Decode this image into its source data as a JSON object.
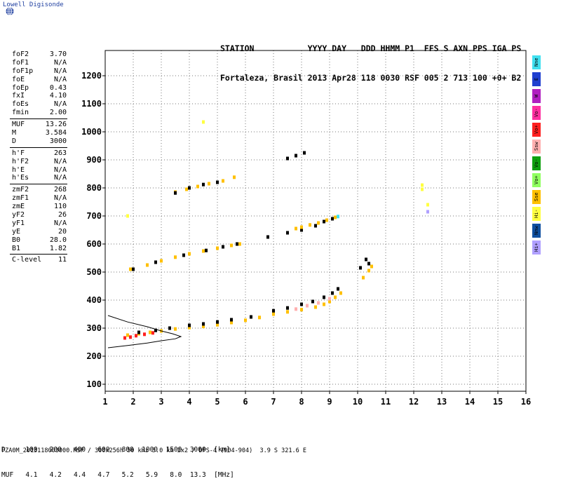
{
  "brand": "Lowell Digisonde",
  "header": {
    "line1": "STATION           YYYY DAY   DDD HHMM P1  FFS S AXN PPS IGA PS",
    "line2": "Fortaleza, Brasil 2013 Apr28 118 0030 RSF 005 2 713 100 +0+ B2"
  },
  "params": [
    {
      "label": "foF2",
      "value": "3.70"
    },
    {
      "label": "foF1",
      "value": "N/A"
    },
    {
      "label": "foF1p",
      "value": "N/A"
    },
    {
      "label": "foE",
      "value": "N/A"
    },
    {
      "label": "foEp",
      "value": "0.43"
    },
    {
      "label": "fxI",
      "value": "4.10"
    },
    {
      "label": "foEs",
      "value": "N/A"
    },
    {
      "label": "fmin",
      "value": "2.00"
    },
    {
      "sep": true
    },
    {
      "label": "MUF",
      "value": "13.26"
    },
    {
      "label": "M",
      "value": "3.584"
    },
    {
      "label": "D",
      "value": "3000"
    },
    {
      "sep": true
    },
    {
      "label": "h'F",
      "value": "263"
    },
    {
      "label": "h'F2",
      "value": "N/A"
    },
    {
      "label": "h'E",
      "value": "N/A"
    },
    {
      "label": "h'Es",
      "value": "N/A"
    },
    {
      "sep": true
    },
    {
      "label": "zmF2",
      "value": "268"
    },
    {
      "label": "zmF1",
      "value": "N/A"
    },
    {
      "label": "zmE",
      "value": "110"
    },
    {
      "label": "yF2",
      "value": "26"
    },
    {
      "label": "yF1",
      "value": "N/A"
    },
    {
      "label": "yE",
      "value": "20"
    },
    {
      "label": "B0",
      "value": "28.0"
    },
    {
      "label": "B1",
      "value": "1.82"
    },
    {
      "sep": true
    },
    {
      "label": "C-level",
      "value": "11"
    }
  ],
  "legend": [
    {
      "label": "Nne",
      "color": "#40e0f0"
    },
    {
      "label": "E",
      "color": "#2040d0"
    },
    {
      "label": "W",
      "color": "#b020c0"
    },
    {
      "label": "Vo-",
      "color": "#ff30a0"
    },
    {
      "label": "Vo+",
      "color": "#ff2020"
    },
    {
      "label": "Ssw",
      "color": "#ffb0b0"
    },
    {
      "label": "Vo-",
      "color": "#10a010"
    },
    {
      "label": "Vo+",
      "color": "#90ff60"
    },
    {
      "label": "Sse",
      "color": "#ffc000"
    },
    {
      "label": "Hi-",
      "color": "#ffff40"
    },
    {
      "label": "Nnw",
      "color": "#1050a0"
    },
    {
      "label": "Hi+",
      "color": "#b0a0ff"
    }
  ],
  "footer": {
    "line1": "D     100   200   400   600   800  1000  1500  3000  [km]",
    "line2": "MUF   4.1   4.2   4.4   4.7   5.2   5.9   8.0  13.3  [MHz]",
    "file": "FZA0M_2013118003000.RSF / 300x256h 50 kHz 5.0 km 2x2 / DPS-4 (904-904)  3.9 S 321.6 E"
  },
  "chart_data": {
    "type": "scatter",
    "xlim": [
      1,
      16
    ],
    "ylim": [
      75,
      1290
    ],
    "x_ticks": [
      1,
      2,
      3,
      4,
      5,
      6,
      7,
      8,
      9,
      10,
      11,
      12,
      13,
      14,
      15,
      16
    ],
    "y_ticks": [
      100,
      200,
      300,
      400,
      500,
      600,
      700,
      800,
      900,
      1000,
      1100,
      1200
    ],
    "grid": true,
    "traces": [
      {
        "name": "",
        "color": "#ffc000",
        "points": [
          [
            1.8,
            275
          ],
          [
            2.2,
            280
          ],
          [
            2.6,
            285
          ],
          [
            3.0,
            290
          ],
          [
            3.5,
            297
          ],
          [
            4.0,
            302
          ],
          [
            4.5,
            306
          ],
          [
            5.0,
            312
          ],
          [
            5.5,
            320
          ],
          [
            6.0,
            328
          ],
          [
            6.5,
            338
          ],
          [
            7.0,
            350
          ],
          [
            7.5,
            358
          ],
          [
            8.0,
            366
          ],
          [
            8.5,
            375
          ],
          [
            8.8,
            385
          ],
          [
            9.0,
            395
          ],
          [
            9.2,
            410
          ],
          [
            9.4,
            425
          ]
        ]
      },
      {
        "name": "",
        "color": "#000000",
        "points": [
          [
            2.2,
            285
          ],
          [
            2.8,
            292
          ],
          [
            3.3,
            300
          ],
          [
            4.0,
            310
          ],
          [
            4.5,
            315
          ],
          [
            5.0,
            322
          ],
          [
            5.5,
            330
          ],
          [
            6.2,
            340
          ],
          [
            7.0,
            362
          ],
          [
            7.5,
            372
          ],
          [
            8.0,
            385
          ],
          [
            8.4,
            395
          ],
          [
            8.8,
            410
          ],
          [
            9.1,
            425
          ],
          [
            9.3,
            440
          ]
        ]
      },
      {
        "name": "",
        "color": "#ffb0b0",
        "points": [
          [
            7.8,
            368
          ],
          [
            8.2,
            380
          ],
          [
            8.6,
            390
          ],
          [
            9.0,
            405
          ]
        ]
      },
      {
        "name": "",
        "color": "#ff2020",
        "points": [
          [
            1.7,
            265
          ],
          [
            1.9,
            268
          ],
          [
            2.1,
            273
          ],
          [
            2.4,
            278
          ],
          [
            2.7,
            283
          ]
        ]
      },
      {
        "name": "",
        "color": "#ffc000",
        "points": [
          [
            1.9,
            510
          ],
          [
            2.5,
            525
          ],
          [
            3.0,
            540
          ],
          [
            3.5,
            553
          ],
          [
            4.0,
            565
          ],
          [
            4.5,
            575
          ],
          [
            5.0,
            585
          ],
          [
            5.5,
            595
          ],
          [
            5.8,
            600
          ]
        ]
      },
      {
        "name": "",
        "color": "#000000",
        "points": [
          [
            2.0,
            510
          ],
          [
            2.8,
            535
          ],
          [
            3.8,
            560
          ],
          [
            4.6,
            577
          ],
          [
            5.2,
            590
          ],
          [
            5.7,
            600
          ],
          [
            6.8,
            625
          ],
          [
            7.5,
            640
          ],
          [
            8.0,
            650
          ],
          [
            8.5,
            665
          ],
          [
            8.8,
            680
          ],
          [
            9.1,
            690
          ]
        ]
      },
      {
        "name": "",
        "color": "#ffc000",
        "points": [
          [
            7.8,
            655
          ],
          [
            8.0,
            660
          ],
          [
            8.3,
            668
          ],
          [
            8.6,
            675
          ],
          [
            8.9,
            685
          ],
          [
            9.2,
            695
          ]
        ]
      },
      {
        "name": "",
        "color": "#ffc000",
        "points": [
          [
            3.5,
            785
          ],
          [
            3.9,
            795
          ],
          [
            4.3,
            805
          ],
          [
            4.7,
            815
          ],
          [
            5.2,
            825
          ],
          [
            5.6,
            838
          ]
        ]
      },
      {
        "name": "",
        "color": "#000000",
        "points": [
          [
            3.5,
            782
          ],
          [
            4.0,
            800
          ],
          [
            4.5,
            812
          ],
          [
            5.0,
            820
          ],
          [
            7.5,
            905
          ],
          [
            7.8,
            915
          ],
          [
            8.1,
            925
          ]
        ]
      },
      {
        "name": "",
        "color": "#40e0f0",
        "points": [
          [
            9.3,
            698
          ]
        ]
      },
      {
        "name": "",
        "color": "#ffc000",
        "points": [
          [
            10.2,
            480
          ],
          [
            10.4,
            505
          ],
          [
            10.5,
            520
          ]
        ]
      },
      {
        "name": "",
        "color": "#000000",
        "points": [
          [
            10.1,
            515
          ],
          [
            10.3,
            545
          ],
          [
            10.4,
            530
          ]
        ]
      },
      {
        "name": "",
        "color": "#ffff40",
        "points": [
          [
            12.3,
            810
          ],
          [
            12.3,
            795
          ],
          [
            12.5,
            740
          ],
          [
            1.8,
            700
          ],
          [
            4.5,
            1035
          ]
        ]
      },
      {
        "name": "",
        "color": "#b0a0ff",
        "points": [
          [
            12.5,
            715
          ]
        ]
      }
    ],
    "profile": {
      "color": "#000000",
      "points": [
        [
          1.1,
          345
        ],
        [
          1.8,
          322
        ],
        [
          2.5,
          305
        ],
        [
          3.0,
          290
        ],
        [
          3.4,
          280
        ],
        [
          3.7,
          270
        ],
        [
          3.5,
          262
        ],
        [
          3.0,
          255
        ],
        [
          2.5,
          247
        ],
        [
          1.8,
          238
        ],
        [
          1.1,
          230
        ]
      ]
    }
  }
}
